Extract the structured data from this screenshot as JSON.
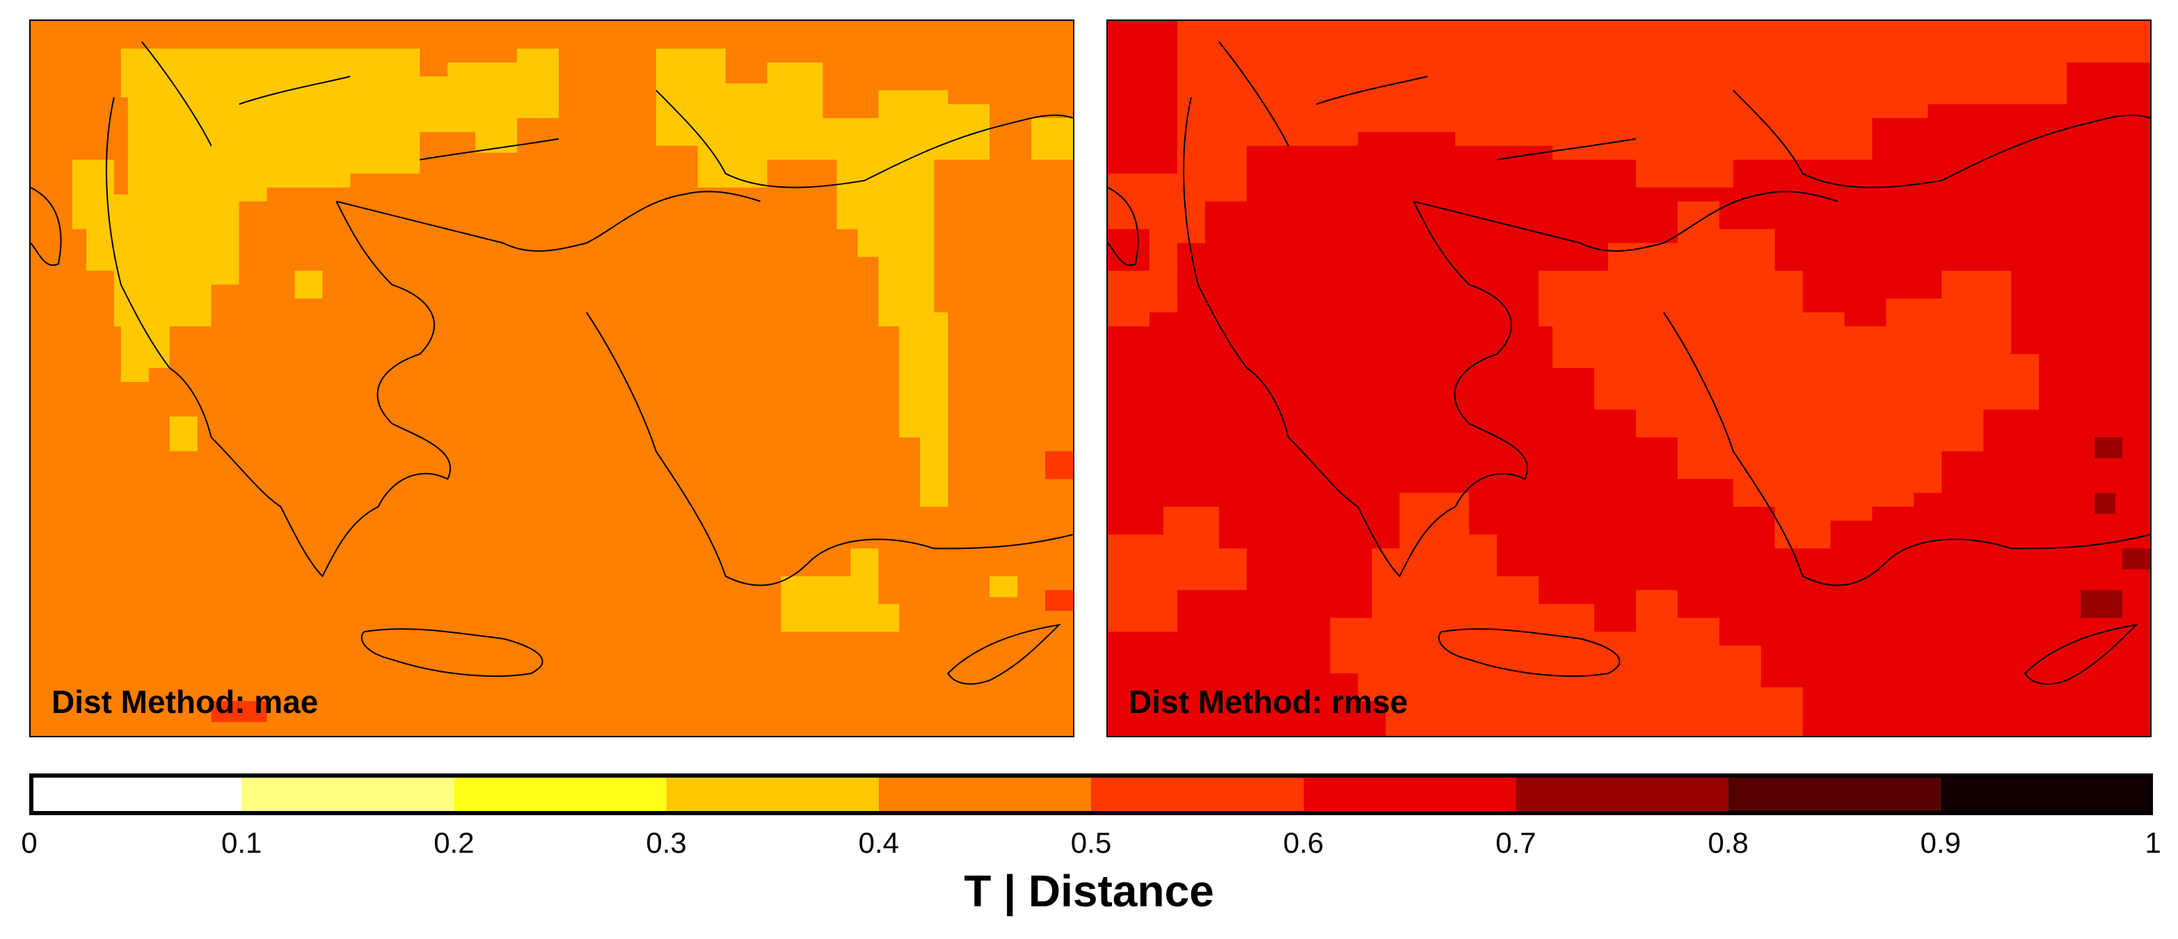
{
  "panels": [
    {
      "label": "Dist Method: mae",
      "base_color": "#ff7f00"
    },
    {
      "label": "Dist Method: rmse",
      "base_color": "#e80000"
    }
  ],
  "colorbar": {
    "title": "T | Distance",
    "ticks": [
      "0",
      "0.1",
      "0.2",
      "0.3",
      "0.4",
      "0.5",
      "0.6",
      "0.7",
      "0.8",
      "0.9",
      "1"
    ],
    "bins": [
      {
        "range": [
          0.0,
          0.1
        ],
        "color": "#ffffff"
      },
      {
        "range": [
          0.1,
          0.2
        ],
        "color": "#ffff80"
      },
      {
        "range": [
          0.2,
          0.3
        ],
        "color": "#ffff1a"
      },
      {
        "range": [
          0.3,
          0.4
        ],
        "color": "#ffc800"
      },
      {
        "range": [
          0.4,
          0.5
        ],
        "color": "#ff7f00"
      },
      {
        "range": [
          0.5,
          0.6
        ],
        "color": "#ff3800"
      },
      {
        "range": [
          0.6,
          0.7
        ],
        "color": "#e80000"
      },
      {
        "range": [
          0.7,
          0.8
        ],
        "color": "#990000"
      },
      {
        "range": [
          0.8,
          0.9
        ],
        "color": "#550000"
      },
      {
        "range": [
          0.9,
          1.0
        ],
        "color": "#100000"
      }
    ]
  }
}
